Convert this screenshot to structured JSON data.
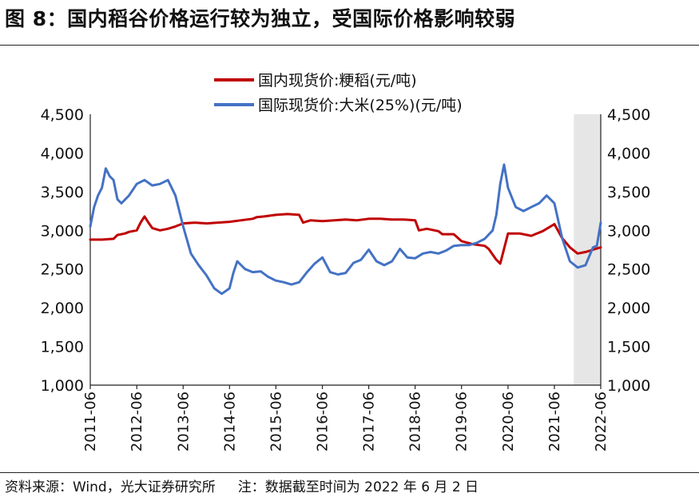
{
  "title": "图 8：国内稻谷价格运行较为独立，受国际价格影响较弱",
  "footer": {
    "source": "资料来源：Wind，光大证券研究所",
    "note": "注：数据截至时间为 2022 年 6 月 2 日"
  },
  "colors": {
    "domestic": "#c00000",
    "international": "#4472c4",
    "shade": "#e6e6e6"
  },
  "chart_data": {
    "type": "line",
    "title": "",
    "xlabel": "",
    "ylabel": "",
    "ylim": [
      1000,
      4500
    ],
    "y_ticks": [
      "1,000",
      "1,500",
      "2,000",
      "2,500",
      "3,000",
      "3,500",
      "4,000",
      "4,500"
    ],
    "y_tick_values": [
      1000,
      1500,
      2000,
      2500,
      3000,
      3500,
      4000,
      4500
    ],
    "x_range": [
      "2011-06-01",
      "2022-06-01"
    ],
    "x_ticks": [
      "2011-06",
      "2012-06",
      "2013-06",
      "2014-06",
      "2015-06",
      "2016-06",
      "2017-06",
      "2018-06",
      "2019-06",
      "2020-06",
      "2021-06",
      "2022-06"
    ],
    "grid": false,
    "legend_position": "top-center",
    "shaded_region": [
      "2021-11-01",
      "2022-06-02"
    ],
    "series": [
      {
        "name": "国内现货价:粳稻(元/吨)",
        "color": "#c00000",
        "x": [
          "2011-06",
          "2011-09",
          "2011-12",
          "2012-01",
          "2012-03",
          "2012-04",
          "2012-06",
          "2012-07",
          "2012-08",
          "2012-09",
          "2012-10",
          "2012-12",
          "2013-02",
          "2013-04",
          "2013-06",
          "2013-09",
          "2013-12",
          "2014-03",
          "2014-06",
          "2014-09",
          "2014-12",
          "2015-01",
          "2015-03",
          "2015-06",
          "2015-09",
          "2015-12",
          "2016-01",
          "2016-03",
          "2016-06",
          "2016-09",
          "2016-12",
          "2017-03",
          "2017-06",
          "2017-09",
          "2017-12",
          "2018-03",
          "2018-06",
          "2018-07",
          "2018-09",
          "2018-12",
          "2019-01",
          "2019-04",
          "2019-06",
          "2019-09",
          "2019-12",
          "2020-01",
          "2020-03",
          "2020-04",
          "2020-06",
          "2020-09",
          "2020-12",
          "2021-03",
          "2021-06",
          "2021-08",
          "2021-10",
          "2021-12",
          "2022-02",
          "2022-04",
          "2022-06"
        ],
        "values": [
          2880,
          2880,
          2890,
          2940,
          2960,
          2980,
          3000,
          3100,
          3180,
          3100,
          3030,
          3000,
          3020,
          3050,
          3090,
          3100,
          3090,
          3100,
          3110,
          3130,
          3150,
          3170,
          3180,
          3200,
          3210,
          3200,
          3100,
          3130,
          3120,
          3130,
          3140,
          3130,
          3150,
          3150,
          3140,
          3140,
          3130,
          3000,
          3020,
          2990,
          2950,
          2950,
          2860,
          2820,
          2800,
          2760,
          2620,
          2570,
          2960,
          2960,
          2930,
          2990,
          3080,
          2900,
          2780,
          2700,
          2720,
          2750,
          2780
        ]
      },
      {
        "name": "国际现货价:大米(25%)(元/吨)",
        "color": "#4472c4",
        "x": [
          "2011-06",
          "2011-07",
          "2011-08",
          "2011-09",
          "2011-10",
          "2011-11",
          "2011-12",
          "2012-01",
          "2012-02",
          "2012-04",
          "2012-06",
          "2012-08",
          "2012-10",
          "2012-12",
          "2013-02",
          "2013-04",
          "2013-06",
          "2013-08",
          "2013-10",
          "2013-12",
          "2014-02",
          "2014-04",
          "2014-06",
          "2014-07",
          "2014-08",
          "2014-10",
          "2014-12",
          "2015-02",
          "2015-04",
          "2015-06",
          "2015-08",
          "2015-10",
          "2015-12",
          "2016-02",
          "2016-04",
          "2016-06",
          "2016-08",
          "2016-10",
          "2016-12",
          "2017-02",
          "2017-04",
          "2017-06",
          "2017-08",
          "2017-10",
          "2017-12",
          "2018-02",
          "2018-04",
          "2018-06",
          "2018-08",
          "2018-10",
          "2018-12",
          "2019-02",
          "2019-04",
          "2019-06",
          "2019-08",
          "2019-10",
          "2019-12",
          "2020-02",
          "2020-03",
          "2020-04",
          "2020-05",
          "2020-06",
          "2020-08",
          "2020-10",
          "2020-12",
          "2021-02",
          "2021-04",
          "2021-06",
          "2021-08",
          "2021-10",
          "2021-12",
          "2022-02",
          "2022-04",
          "2022-05",
          "2022-06"
        ],
        "values": [
          3050,
          3300,
          3450,
          3550,
          3800,
          3700,
          3650,
          3400,
          3350,
          3450,
          3600,
          3650,
          3580,
          3600,
          3650,
          3450,
          3050,
          2700,
          2550,
          2420,
          2250,
          2180,
          2250,
          2450,
          2600,
          2500,
          2460,
          2470,
          2400,
          2350,
          2330,
          2300,
          2330,
          2460,
          2570,
          2650,
          2460,
          2430,
          2450,
          2580,
          2620,
          2750,
          2600,
          2550,
          2600,
          2760,
          2650,
          2640,
          2700,
          2720,
          2700,
          2740,
          2800,
          2810,
          2810,
          2840,
          2890,
          3000,
          3200,
          3600,
          3850,
          3550,
          3300,
          3250,
          3300,
          3350,
          3450,
          3350,
          2900,
          2600,
          2520,
          2550,
          2780,
          2800,
          3100
        ]
      }
    ]
  }
}
